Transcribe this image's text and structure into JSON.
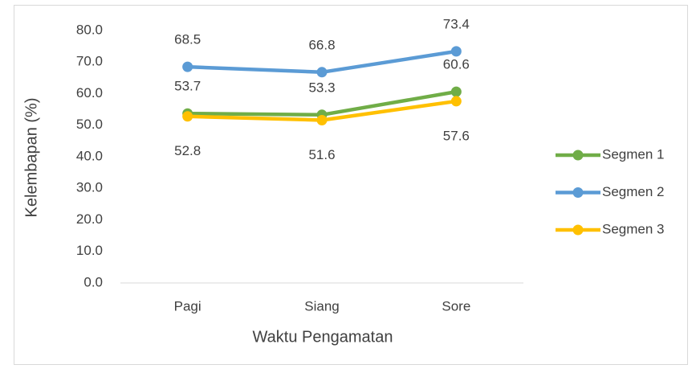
{
  "chart_data": {
    "type": "line",
    "x_label": "Waktu Pengamatan",
    "y_label": "Kelembapan (%)",
    "categories": [
      "Pagi",
      "Siang",
      "Sore"
    ],
    "series": [
      {
        "name": "Segmen 1",
        "color": "#70ad47",
        "values": [
          53.7,
          53.3,
          60.6
        ]
      },
      {
        "name": "Segmen 2",
        "color": "#5b9bd5",
        "values": [
          68.5,
          66.8,
          73.4
        ]
      },
      {
        "name": "Segmen 3",
        "color": "#ffc000",
        "values": [
          52.8,
          51.6,
          57.6
        ]
      }
    ],
    "ylim": [
      0,
      80
    ],
    "yticks": [
      {
        "value": 0,
        "label": "0.0"
      },
      {
        "value": 10,
        "label": "10.0"
      },
      {
        "value": 20,
        "label": "20.0"
      },
      {
        "value": 30,
        "label": "30.0"
      },
      {
        "value": 40,
        "label": "40.0"
      },
      {
        "value": 50,
        "label": "50.0"
      },
      {
        "value": 60,
        "label": "60.0"
      },
      {
        "value": 70,
        "label": "70.0"
      },
      {
        "value": 80,
        "label": "80.0"
      }
    ],
    "grid": false,
    "legend": "right"
  }
}
